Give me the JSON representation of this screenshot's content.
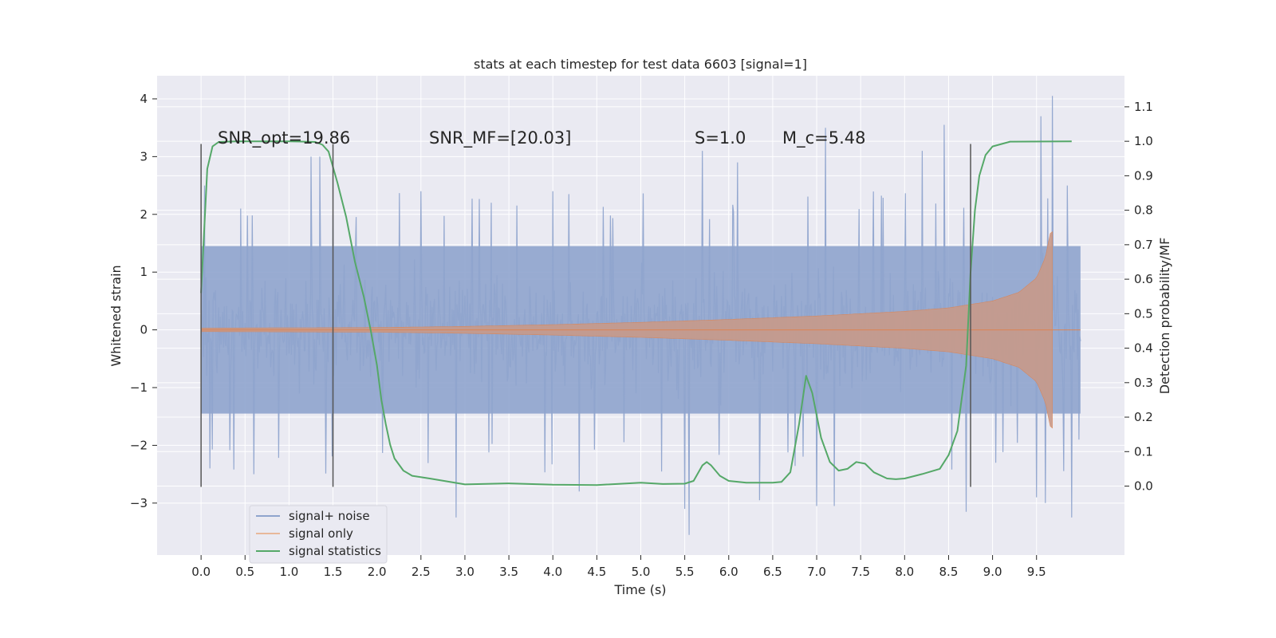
{
  "chart_data": {
    "type": "line",
    "title": "stats at each timestep for test data 6603 [signal=1]",
    "xlabel": "Time (s)",
    "ylabel": "Whitened strain",
    "ylabel_right": "Detection probability/MF",
    "xlim": [
      -0.5,
      10.5
    ],
    "ylim": [
      -3.9,
      4.4
    ],
    "ylim_right": [
      -0.2,
      1.19
    ],
    "xticks": [
      "0.0",
      "0.5",
      "1.0",
      "1.5",
      "2.0",
      "2.5",
      "3.0",
      "3.5",
      "4.0",
      "4.5",
      "5.0",
      "5.5",
      "6.0",
      "6.5",
      "7.0",
      "7.5",
      "8.0",
      "8.5",
      "9.0",
      "9.5"
    ],
    "xtick_values": [
      0,
      0.5,
      1,
      1.5,
      2,
      2.5,
      3,
      3.5,
      4,
      4.5,
      5,
      5.5,
      6,
      6.5,
      7,
      7.5,
      8,
      8.5,
      9,
      9.5
    ],
    "yticks_left": [
      "−3",
      "−2",
      "−1",
      "0",
      "1",
      "2",
      "3",
      "4"
    ],
    "ytick_values_left": [
      -3,
      -2,
      -1,
      0,
      1,
      2,
      3,
      4
    ],
    "yticks_right": [
      "0.0",
      "0.1",
      "0.2",
      "0.3",
      "0.4",
      "0.5",
      "0.6",
      "0.7",
      "0.8",
      "0.9",
      "1.0",
      "1.1"
    ],
    "ytick_values_right": [
      0,
      0.1,
      0.2,
      0.3,
      0.4,
      0.5,
      0.6,
      0.7,
      0.8,
      0.9,
      1.0,
      1.1
    ],
    "grid": true,
    "legend_position": "lower-left",
    "annotations": [
      {
        "label": "SNR_opt=19.86",
        "x": 0.2,
        "y": 3.3
      },
      {
        "label": "SNR_MF=[20.03]",
        "x": 2.6,
        "y": 3.3
      },
      {
        "label": "S=1.0",
        "x": 5.6,
        "y": 3.3
      },
      {
        "label": "M_c=5.48",
        "x": 6.6,
        "y": 3.3
      }
    ],
    "vlines": [
      0.0,
      1.5,
      8.75
    ],
    "vline_range": [
      -2.72,
      3.22
    ],
    "series": [
      {
        "name": "signal+ noise",
        "color": "#8fa4cd",
        "axis": "left",
        "time_range": [
          0.0,
          10.0
        ],
        "envelope": "noise",
        "peaks": [
          [
            0.04,
            2.5
          ],
          [
            0.45,
            2.1
          ],
          [
            1.25,
            3.0
          ],
          [
            1.35,
            3.0
          ],
          [
            1.5,
            2.0
          ],
          [
            2.5,
            2.4
          ],
          [
            3.3,
            2.2
          ],
          [
            4.0,
            2.4
          ],
          [
            5.5,
            2.8
          ],
          [
            5.7,
            3.1
          ],
          [
            6.1,
            2.9
          ],
          [
            7.0,
            2.9
          ],
          [
            7.1,
            3.5
          ],
          [
            8.2,
            3.1
          ],
          [
            8.45,
            3.55
          ],
          [
            9.5,
            3.3
          ],
          [
            9.55,
            3.7
          ],
          [
            9.68,
            4.05
          ],
          [
            9.85,
            2.5
          ]
        ],
        "troughs": [
          [
            0.1,
            -2.4
          ],
          [
            0.6,
            -2.5
          ],
          [
            2.9,
            -3.25
          ],
          [
            4.3,
            -2.8
          ],
          [
            5.5,
            -3.1
          ],
          [
            5.55,
            -3.55
          ],
          [
            6.35,
            -2.95
          ],
          [
            7.0,
            -3.05
          ],
          [
            7.2,
            -3.05
          ],
          [
            8.7,
            -3.15
          ],
          [
            9.5,
            -2.9
          ],
          [
            9.6,
            -3.0
          ],
          [
            9.9,
            -3.25
          ]
        ]
      },
      {
        "name": "signal only",
        "color": "#dd8452",
        "axis": "left",
        "type": "chirp",
        "t_start": 0.0,
        "t_merge": 9.68,
        "amplitude_points": [
          [
            0,
            0.03
          ],
          [
            2.0,
            0.04
          ],
          [
            3.0,
            0.06
          ],
          [
            4.0,
            0.09
          ],
          [
            5.0,
            0.13
          ],
          [
            6.0,
            0.18
          ],
          [
            7.0,
            0.24
          ],
          [
            8.0,
            0.32
          ],
          [
            8.5,
            0.38
          ],
          [
            9.0,
            0.5
          ],
          [
            9.3,
            0.65
          ],
          [
            9.5,
            0.9
          ],
          [
            9.6,
            1.25
          ],
          [
            9.66,
            1.7
          ]
        ]
      },
      {
        "name": "signal statistics",
        "color": "#55a868",
        "axis": "right",
        "points": [
          [
            0.0,
            0.56
          ],
          [
            0.07,
            0.92
          ],
          [
            0.13,
            0.985
          ],
          [
            0.2,
            0.998
          ],
          [
            0.4,
            1.0
          ],
          [
            1.0,
            1.0
          ],
          [
            1.3,
            0.998
          ],
          [
            1.38,
            0.99
          ],
          [
            1.45,
            0.97
          ],
          [
            1.55,
            0.88
          ],
          [
            1.65,
            0.78
          ],
          [
            1.75,
            0.65
          ],
          [
            1.85,
            0.55
          ],
          [
            1.93,
            0.45
          ],
          [
            2.0,
            0.35
          ],
          [
            2.05,
            0.25
          ],
          [
            2.1,
            0.18
          ],
          [
            2.15,
            0.12
          ],
          [
            2.2,
            0.08
          ],
          [
            2.3,
            0.045
          ],
          [
            2.4,
            0.03
          ],
          [
            2.6,
            0.022
          ],
          [
            3.0,
            0.005
          ],
          [
            3.5,
            0.008
          ],
          [
            4.0,
            0.004
          ],
          [
            4.5,
            0.003
          ],
          [
            5.0,
            0.01
          ],
          [
            5.25,
            0.006
          ],
          [
            5.5,
            0.007
          ],
          [
            5.6,
            0.015
          ],
          [
            5.7,
            0.06
          ],
          [
            5.75,
            0.07
          ],
          [
            5.8,
            0.06
          ],
          [
            5.9,
            0.03
          ],
          [
            6.0,
            0.015
          ],
          [
            6.2,
            0.01
          ],
          [
            6.5,
            0.01
          ],
          [
            6.6,
            0.012
          ],
          [
            6.7,
            0.04
          ],
          [
            6.8,
            0.18
          ],
          [
            6.88,
            0.32
          ],
          [
            6.95,
            0.27
          ],
          [
            7.05,
            0.14
          ],
          [
            7.15,
            0.07
          ],
          [
            7.25,
            0.045
          ],
          [
            7.35,
            0.05
          ],
          [
            7.45,
            0.07
          ],
          [
            7.55,
            0.065
          ],
          [
            7.65,
            0.04
          ],
          [
            7.8,
            0.022
          ],
          [
            7.9,
            0.02
          ],
          [
            8.0,
            0.022
          ],
          [
            8.2,
            0.035
          ],
          [
            8.4,
            0.05
          ],
          [
            8.5,
            0.09
          ],
          [
            8.6,
            0.16
          ],
          [
            8.7,
            0.35
          ],
          [
            8.75,
            0.62
          ],
          [
            8.8,
            0.8
          ],
          [
            8.85,
            0.9
          ],
          [
            8.92,
            0.96
          ],
          [
            9.0,
            0.985
          ],
          [
            9.2,
            0.999
          ],
          [
            9.9,
            1.0
          ]
        ]
      }
    ]
  }
}
